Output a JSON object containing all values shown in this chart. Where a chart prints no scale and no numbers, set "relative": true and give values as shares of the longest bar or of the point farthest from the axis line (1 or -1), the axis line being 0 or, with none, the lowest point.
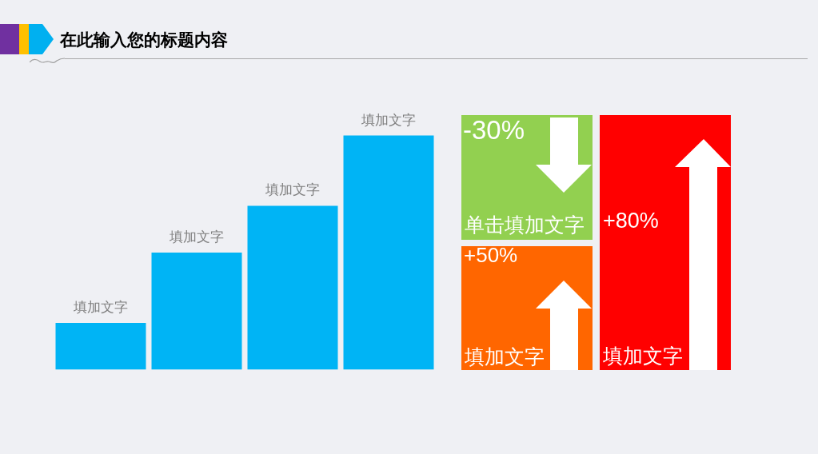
{
  "chart_data": [
    {
      "type": "bar",
      "title": "在此输入您的标题内容",
      "categories": [
        "填加文字",
        "填加文字",
        "填加文字",
        "填加文字"
      ],
      "values": [
        0.2,
        0.5,
        0.7,
        1.0
      ],
      "relative": true,
      "color": "#00b4f5"
    },
    {
      "type": "other",
      "annotations": [
        "-30%",
        "单击填加文字",
        "+50%",
        "填加文字",
        "+80%",
        "填加文字"
      ],
      "colors": [
        "#92d050",
        "#ff6600",
        "#ff0000"
      ]
    }
  ]
}
